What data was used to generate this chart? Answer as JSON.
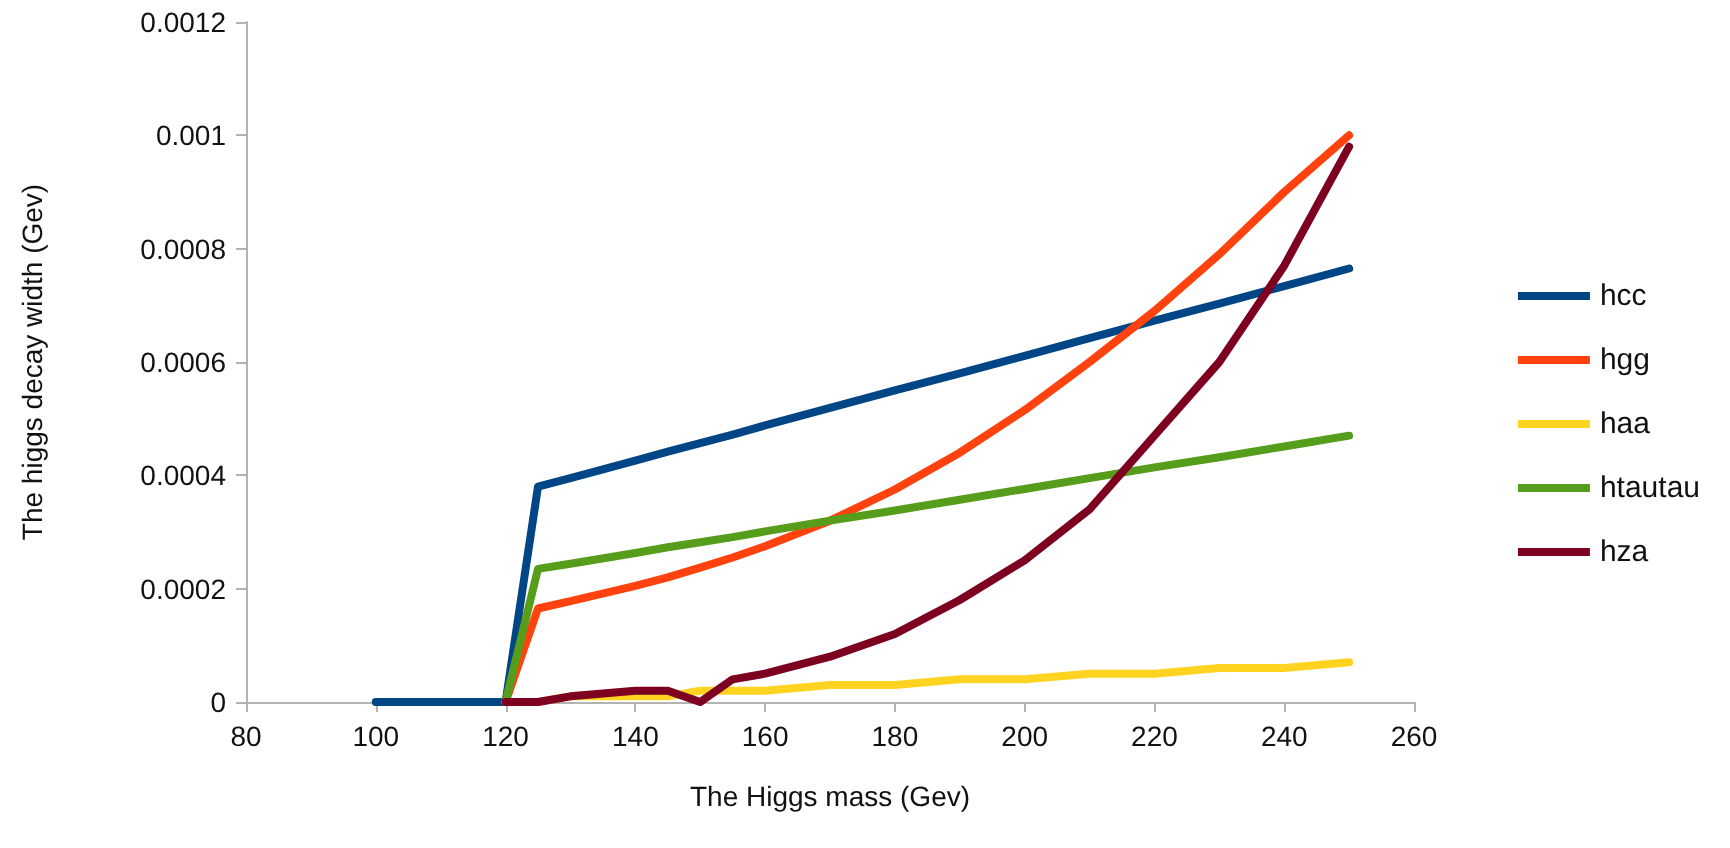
{
  "chart_data": {
    "type": "line",
    "xlabel": "The Higgs mass (Gev)",
    "ylabel": "The higgs decay width (Gev)",
    "x": [
      100,
      110,
      120,
      125,
      130,
      140,
      145,
      150,
      155,
      160,
      170,
      180,
      190,
      200,
      210,
      220,
      230,
      240,
      250
    ],
    "xlim": [
      80,
      260
    ],
    "xticks": [
      80,
      100,
      120,
      140,
      160,
      180,
      200,
      220,
      240,
      260
    ],
    "ylim": [
      0,
      0.0012
    ],
    "yticks": [
      0,
      0.0002,
      0.0004,
      0.0006,
      0.0008,
      0.001,
      0.0012
    ],
    "grid": false,
    "legend": "right",
    "marker": "none",
    "line_style": "solid",
    "series": [
      {
        "name": "hcc",
        "color": "#004586",
        "values": [
          0,
          0,
          0,
          0.00038,
          0.000395,
          0.000426,
          0.000442,
          0.000457,
          0.000472,
          0.000488,
          0.000519,
          0.00055,
          0.00058,
          0.000611,
          0.000642,
          0.000673,
          0.000703,
          0.000734,
          0.000765
        ]
      },
      {
        "name": "hgg",
        "color": "#ff420e",
        "values": [
          null,
          null,
          0,
          0.000165,
          0.000178,
          0.000205,
          0.00022,
          0.000237,
          0.000255,
          0.000275,
          0.00032,
          0.000375,
          0.00044,
          0.000515,
          0.0006,
          0.00069,
          0.00079,
          0.0009,
          0.001
        ]
      },
      {
        "name": "haa",
        "color": "#ffd320",
        "values": [
          null,
          null,
          0,
          0,
          1e-05,
          1e-05,
          1e-05,
          2e-05,
          2e-05,
          2e-05,
          3e-05,
          3e-05,
          4e-05,
          4e-05,
          5e-05,
          5e-05,
          6e-05,
          6e-05,
          7e-05
        ]
      },
      {
        "name": "htautau",
        "color": "#579d1c",
        "values": [
          null,
          null,
          0,
          0.000235,
          0.000244,
          0.000263,
          0.000273,
          0.000282,
          0.000291,
          0.000301,
          0.00032,
          0.000338,
          0.000357,
          0.000376,
          0.000395,
          0.000414,
          0.000432,
          0.000451,
          0.00047
        ]
      },
      {
        "name": "hza",
        "color": "#7e0021",
        "values": [
          null,
          null,
          0,
          0,
          1e-05,
          2e-05,
          2e-05,
          0,
          4e-05,
          5e-05,
          8e-05,
          0.00012,
          0.00018,
          0.00025,
          0.00034,
          0.00047,
          0.0006,
          0.00077,
          0.00098
        ]
      }
    ]
  }
}
